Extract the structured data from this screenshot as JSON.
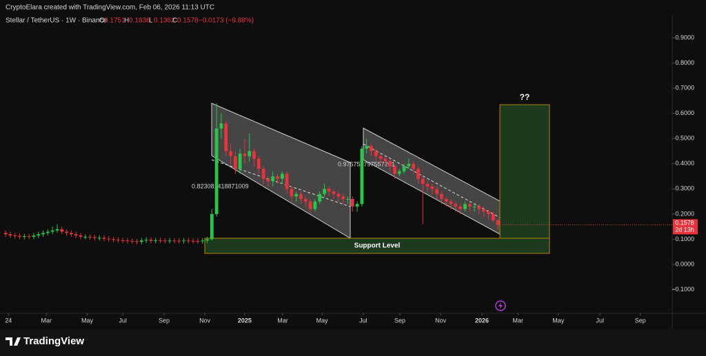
{
  "header": {
    "credit": "CryptoElara created with TradingView.com, Feb 06, 2026 11:13 UTC",
    "symbol": "Stellar / TetherUS · 1W · Binance",
    "o_label": "O",
    "o": "0.1751",
    "h_label": "H",
    "h": "0.1836",
    "l_label": "L",
    "l": "0.1362",
    "c_label": "C",
    "c": "0.1578",
    "change": "−0.0173 (−9.88%)"
  },
  "chart_data": {
    "type": "candlestick",
    "up_color": "#26c84a",
    "down_color": "#e8323c",
    "open": [
      0.125,
      0.12,
      0.115,
      0.113,
      0.11,
      0.112,
      0.11,
      0.115,
      0.12,
      0.125,
      0.13,
      0.135,
      0.14,
      0.13,
      0.125,
      0.12,
      0.115,
      0.11,
      0.11,
      0.108,
      0.105,
      0.106,
      0.102,
      0.1,
      0.098,
      0.096,
      0.095,
      0.093,
      0.092,
      0.09,
      0.095,
      0.098,
      0.094,
      0.096,
      0.095,
      0.094,
      0.095,
      0.094,
      0.093,
      0.095,
      0.094,
      0.093,
      0.092,
      0.095,
      0.1,
      0.2,
      0.54,
      0.56,
      0.45,
      0.43,
      0.38,
      0.44,
      0.43,
      0.45,
      0.42,
      0.38,
      0.34,
      0.33,
      0.35,
      0.34,
      0.36,
      0.3,
      0.27,
      0.28,
      0.26,
      0.25,
      0.22,
      0.25,
      0.28,
      0.3,
      0.29,
      0.28,
      0.27,
      0.26,
      0.26,
      0.23,
      0.24,
      0.46,
      0.47,
      0.45,
      0.43,
      0.42,
      0.41,
      0.39,
      0.36,
      0.37,
      0.39,
      0.4,
      0.38,
      0.34,
      0.32,
      0.31,
      0.3,
      0.28,
      0.26,
      0.25,
      0.24,
      0.23,
      0.22,
      0.24,
      0.23,
      0.23,
      0.22,
      0.21,
      0.2,
      0.1751
    ],
    "high": [
      0.135,
      0.13,
      0.125,
      0.123,
      0.122,
      0.122,
      0.125,
      0.13,
      0.135,
      0.14,
      0.15,
      0.16,
      0.15,
      0.14,
      0.135,
      0.13,
      0.125,
      0.12,
      0.12,
      0.118,
      0.116,
      0.116,
      0.112,
      0.11,
      0.108,
      0.106,
      0.105,
      0.103,
      0.102,
      0.105,
      0.108,
      0.108,
      0.106,
      0.106,
      0.105,
      0.105,
      0.105,
      0.104,
      0.105,
      0.105,
      0.104,
      0.103,
      0.105,
      0.11,
      0.22,
      0.64,
      0.6,
      0.57,
      0.48,
      0.45,
      0.46,
      0.5,
      0.52,
      0.46,
      0.43,
      0.39,
      0.35,
      0.37,
      0.36,
      0.37,
      0.37,
      0.31,
      0.29,
      0.29,
      0.27,
      0.26,
      0.26,
      0.29,
      0.32,
      0.31,
      0.3,
      0.29,
      0.28,
      0.27,
      0.27,
      0.25,
      0.47,
      0.5,
      0.48,
      0.46,
      0.44,
      0.43,
      0.42,
      0.4,
      0.38,
      0.4,
      0.42,
      0.41,
      0.39,
      0.35,
      0.33,
      0.32,
      0.31,
      0.29,
      0.27,
      0.26,
      0.25,
      0.24,
      0.25,
      0.25,
      0.24,
      0.24,
      0.23,
      0.22,
      0.21,
      0.1836
    ],
    "low": [
      0.11,
      0.105,
      0.103,
      0.1,
      0.1,
      0.1,
      0.1,
      0.105,
      0.11,
      0.115,
      0.12,
      0.125,
      0.12,
      0.115,
      0.11,
      0.105,
      0.1,
      0.1,
      0.098,
      0.095,
      0.095,
      0.092,
      0.09,
      0.088,
      0.086,
      0.085,
      0.083,
      0.082,
      0.08,
      0.08,
      0.085,
      0.084,
      0.084,
      0.085,
      0.084,
      0.084,
      0.084,
      0.083,
      0.083,
      0.084,
      0.083,
      0.082,
      0.082,
      0.085,
      0.095,
      0.19,
      0.5,
      0.43,
      0.4,
      0.36,
      0.36,
      0.4,
      0.41,
      0.39,
      0.36,
      0.32,
      0.31,
      0.31,
      0.32,
      0.32,
      0.28,
      0.25,
      0.25,
      0.24,
      0.23,
      0.2,
      0.21,
      0.24,
      0.27,
      0.27,
      0.26,
      0.25,
      0.24,
      0.24,
      0.21,
      0.21,
      0.23,
      0.44,
      0.43,
      0.41,
      0.4,
      0.39,
      0.37,
      0.34,
      0.35,
      0.36,
      0.38,
      0.36,
      0.32,
      0.16,
      0.29,
      0.28,
      0.26,
      0.24,
      0.23,
      0.22,
      0.21,
      0.2,
      0.21,
      0.21,
      0.21,
      0.2,
      0.19,
      0.18,
      0.17,
      0.1362
    ],
    "close": [
      0.12,
      0.115,
      0.113,
      0.11,
      0.112,
      0.11,
      0.115,
      0.12,
      0.125,
      0.13,
      0.135,
      0.14,
      0.13,
      0.125,
      0.12,
      0.115,
      0.11,
      0.11,
      0.108,
      0.105,
      0.106,
      0.102,
      0.1,
      0.098,
      0.096,
      0.095,
      0.093,
      0.092,
      0.09,
      0.095,
      0.098,
      0.094,
      0.096,
      0.095,
      0.094,
      0.095,
      0.094,
      0.093,
      0.095,
      0.094,
      0.093,
      0.092,
      0.095,
      0.1,
      0.2,
      0.54,
      0.56,
      0.45,
      0.43,
      0.38,
      0.44,
      0.43,
      0.45,
      0.42,
      0.38,
      0.34,
      0.33,
      0.35,
      0.34,
      0.36,
      0.3,
      0.27,
      0.28,
      0.26,
      0.25,
      0.22,
      0.25,
      0.28,
      0.3,
      0.29,
      0.28,
      0.27,
      0.26,
      0.26,
      0.23,
      0.24,
      0.46,
      0.47,
      0.45,
      0.43,
      0.42,
      0.41,
      0.39,
      0.36,
      0.37,
      0.39,
      0.4,
      0.38,
      0.34,
      0.32,
      0.31,
      0.3,
      0.28,
      0.26,
      0.25,
      0.24,
      0.23,
      0.22,
      0.24,
      0.23,
      0.23,
      0.22,
      0.21,
      0.2,
      0.1751,
      0.1578
    ],
    "xlim": [
      -1.2,
      142.2
    ],
    "xticks": [
      {
        "value": 0.6,
        "label": "24"
      },
      {
        "value": 8.7,
        "label": "Mar"
      },
      {
        "value": 17.4,
        "label": "May"
      },
      {
        "value": 25,
        "label": "Jul"
      },
      {
        "value": 33.8,
        "label": "Sep"
      },
      {
        "value": 42.5,
        "label": "Nov"
      },
      {
        "value": 51,
        "label": "2025"
      },
      {
        "value": 59.1,
        "label": "Mar"
      },
      {
        "value": 67.5,
        "label": "May"
      },
      {
        "value": 76.3,
        "label": "Jul"
      },
      {
        "value": 84.1,
        "label": "Sep"
      },
      {
        "value": 92.8,
        "label": "Nov"
      },
      {
        "value": 101.6,
        "label": "2026"
      },
      {
        "value": 109.3,
        "label": "Mar"
      },
      {
        "value": 117.9,
        "label": "May"
      },
      {
        "value": 126.8,
        "label": "Jul"
      },
      {
        "value": 135.4,
        "label": "Sep"
      }
    ],
    "ylim": [
      -0.194,
      0.99
    ],
    "yticks": [
      {
        "value": -0.1,
        "label": "−0.1000"
      },
      {
        "value": 0,
        "label": "0.0000"
      },
      {
        "value": 0.1,
        "label": "0.1000"
      },
      {
        "value": 0.2,
        "label": "0.2000"
      },
      {
        "value": 0.3,
        "label": "0.3000"
      },
      {
        "value": 0.4,
        "label": "0.4000"
      },
      {
        "value": 0.5,
        "label": "0.5000"
      },
      {
        "value": 0.6,
        "label": "0.6000"
      },
      {
        "value": 0.7,
        "label": "0.7000"
      },
      {
        "value": 0.8,
        "label": "0.8000"
      },
      {
        "value": 0.9,
        "label": "0.9000"
      }
    ],
    "last_price_label": "0.1578",
    "countdown": "2d 13h",
    "annotations": {
      "channel_1": "0.823081418871009",
      "channel_2": "0.975758797557201",
      "support": "Support Level",
      "target": "??"
    }
  },
  "footer": {
    "logo": "TradingView"
  }
}
